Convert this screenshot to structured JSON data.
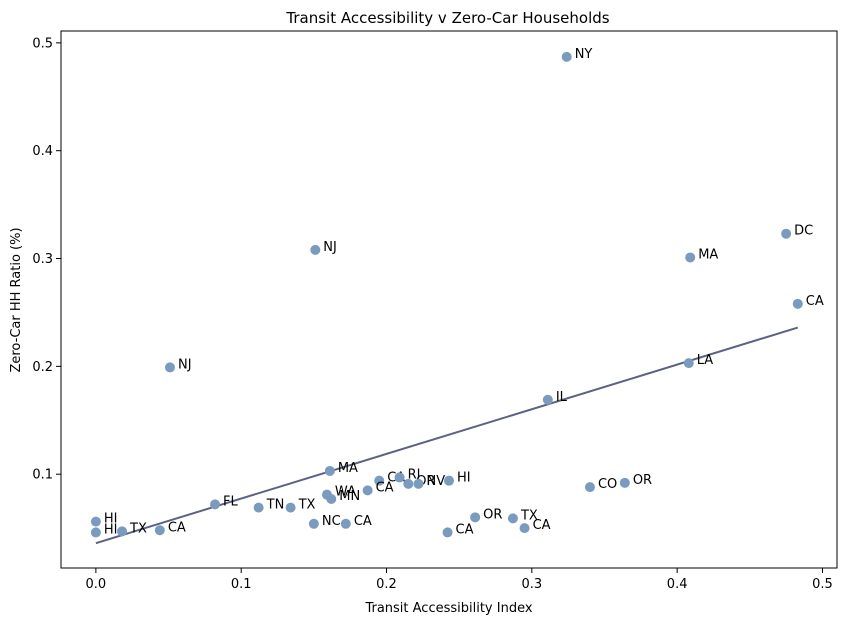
{
  "chart_data": {
    "type": "scatter",
    "title": "Transit Accessibility v Zero-Car Households",
    "xlabel": "Transit Accessibility Index",
    "ylabel": "Zero-Car HH Ratio (%)",
    "xlim": [
      -0.024,
      0.51
    ],
    "ylim": [
      0.013,
      0.511
    ],
    "xticks": [
      0.0,
      0.1,
      0.2,
      0.3,
      0.4,
      0.5
    ],
    "xtick_labels": [
      "0.0",
      "0.1",
      "0.2",
      "0.3",
      "0.4",
      "0.5"
    ],
    "yticks": [
      0.1,
      0.2,
      0.3,
      0.4,
      0.5
    ],
    "ytick_labels": [
      "0.1",
      "0.2",
      "0.3",
      "0.4",
      "0.5"
    ],
    "grid": false,
    "point_color": "#7b9bbe",
    "trendline": {
      "color": "#5b6282",
      "x": [
        0.0,
        0.483
      ],
      "y": [
        0.036,
        0.236
      ]
    },
    "points": [
      {
        "x": 0.324,
        "y": 0.487,
        "label": "NY"
      },
      {
        "x": 0.475,
        "y": 0.323,
        "label": "DC"
      },
      {
        "x": 0.151,
        "y": 0.308,
        "label": "NJ"
      },
      {
        "x": 0.409,
        "y": 0.301,
        "label": "MA"
      },
      {
        "x": 0.483,
        "y": 0.258,
        "label": "CA"
      },
      {
        "x": 0.408,
        "y": 0.203,
        "label": "LA"
      },
      {
        "x": 0.051,
        "y": 0.199,
        "label": "NJ"
      },
      {
        "x": 0.311,
        "y": 0.169,
        "label": "IL"
      },
      {
        "x": 0.161,
        "y": 0.103,
        "label": "MA"
      },
      {
        "x": 0.195,
        "y": 0.094,
        "label": "CA"
      },
      {
        "x": 0.209,
        "y": 0.097,
        "label": "RI"
      },
      {
        "x": 0.215,
        "y": 0.091,
        "label": "OR"
      },
      {
        "x": 0.222,
        "y": 0.091,
        "label": "NV"
      },
      {
        "x": 0.243,
        "y": 0.094,
        "label": "HI"
      },
      {
        "x": 0.187,
        "y": 0.085,
        "label": "CA"
      },
      {
        "x": 0.159,
        "y": 0.081,
        "label": "WA"
      },
      {
        "x": 0.162,
        "y": 0.077,
        "label": "MN"
      },
      {
        "x": 0.082,
        "y": 0.072,
        "label": "FL"
      },
      {
        "x": 0.112,
        "y": 0.069,
        "label": "TN"
      },
      {
        "x": 0.134,
        "y": 0.069,
        "label": "TX"
      },
      {
        "x": 0.15,
        "y": 0.054,
        "label": "NC"
      },
      {
        "x": 0.172,
        "y": 0.054,
        "label": "CA"
      },
      {
        "x": 0.34,
        "y": 0.088,
        "label": "CO"
      },
      {
        "x": 0.364,
        "y": 0.092,
        "label": "OR"
      },
      {
        "x": 0.261,
        "y": 0.06,
        "label": "OR"
      },
      {
        "x": 0.287,
        "y": 0.059,
        "label": "TX"
      },
      {
        "x": 0.295,
        "y": 0.05,
        "label": "CA"
      },
      {
        "x": 0.242,
        "y": 0.046,
        "label": "CA"
      },
      {
        "x": 0.0,
        "y": 0.056,
        "label": "HI"
      },
      {
        "x": 0.0,
        "y": 0.046,
        "label": "HI"
      },
      {
        "x": 0.018,
        "y": 0.047,
        "label": "TX"
      },
      {
        "x": 0.044,
        "y": 0.048,
        "label": "CA"
      }
    ]
  }
}
